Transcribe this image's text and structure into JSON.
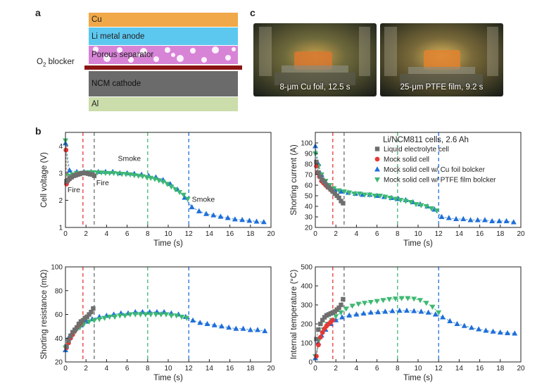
{
  "panel_a": {
    "letter": "a",
    "layers": [
      {
        "label": "Cu",
        "color": "#F0A848"
      },
      {
        "label": "Li metal anode",
        "color": "#5CC8F0"
      },
      {
        "label": "Porous separator",
        "color": "#D784D7"
      },
      {
        "label": "NCM cathode",
        "color": "#6B6B6B"
      },
      {
        "label": "Al",
        "color": "#CBDDAA"
      }
    ],
    "blocker_label": "O",
    "blocker_sub": "2",
    "blocker_rest": " blocker",
    "blocker_color": "#8B1414"
  },
  "panel_c": {
    "letter": "c",
    "photos": [
      {
        "caption": "8-μm Cu foil, 12.5 s"
      },
      {
        "caption": "25-μm PTFE film, 9.2 s"
      }
    ]
  },
  "panel_b": {
    "letter": "b"
  },
  "series_styles": [
    {
      "name": "Liquid electrolyte cell",
      "color": "#6E6E6E",
      "marker": "square",
      "vline": 2.8
    },
    {
      "name": "Mock solid cell",
      "color": "#E53935",
      "marker": "circle",
      "vline": 1.7
    },
    {
      "name": "Mock solid cell w/ Cu foil bolcker",
      "color": "#1E6FD9",
      "marker": "triangle-up",
      "vline": 12.0
    },
    {
      "name": "Mock solid cell w/ PTFE film bolcker",
      "color": "#3DB872",
      "marker": "triangle-down",
      "vline": 8.0
    }
  ],
  "chart_data": [
    {
      "type": "scatter",
      "xlabel": "Time (s)",
      "ylabel": "Cell voltage (V)",
      "xlim": [
        0,
        20
      ],
      "ylim": [
        1,
        4.5
      ],
      "xticks": [
        0,
        2,
        4,
        6,
        8,
        10,
        12,
        14,
        16,
        18,
        20
      ],
      "yticks": [
        1,
        2,
        3,
        4
      ],
      "annotations": [
        {
          "text": "Fire",
          "x": 0.2,
          "y": 2.3
        },
        {
          "text": "Fire",
          "x": 3.0,
          "y": 2.55
        },
        {
          "text": "Smoke",
          "x": 5.1,
          "y": 3.45
        },
        {
          "text": "Smoke",
          "x": 12.3,
          "y": 1.95
        }
      ],
      "series": [
        {
          "x": [
            0.1,
            0.2,
            0.4,
            0.6,
            0.8,
            1.0,
            1.2,
            1.4,
            1.6,
            1.8,
            2.0,
            2.2,
            2.4,
            2.6,
            2.8
          ],
          "values": [
            2.7,
            2.75,
            2.8,
            2.85,
            2.9,
            2.92,
            2.95,
            2.97,
            3.0,
            3.0,
            3.0,
            2.98,
            2.96,
            2.95,
            2.9
          ]
        },
        {
          "x": [
            0.05,
            0.1,
            0.2,
            0.3,
            0.4,
            0.6,
            0.8,
            1.0,
            1.2,
            1.4,
            1.6
          ],
          "values": [
            3.85,
            2.6,
            2.7,
            2.75,
            2.8,
            2.85,
            2.9,
            2.93,
            2.95,
            2.98,
            3.0
          ]
        },
        {
          "x": [
            0.0,
            0.4,
            1.1,
            1.8,
            2.5,
            3.2,
            3.9,
            4.6,
            5.3,
            6.0,
            6.7,
            7.4,
            8.1,
            8.8,
            9.5,
            10.2,
            10.9,
            11.6,
            12.3,
            13.0,
            13.7,
            14.4,
            15.1,
            15.8,
            16.5,
            17.2,
            17.9,
            18.6,
            19.3
          ],
          "values": [
            4.1,
            3.1,
            3.05,
            3.05,
            3.05,
            3.05,
            3.05,
            3.05,
            3.0,
            3.0,
            2.98,
            2.95,
            2.9,
            2.85,
            2.75,
            2.6,
            2.4,
            2.1,
            1.75,
            1.6,
            1.5,
            1.45,
            1.4,
            1.35,
            1.3,
            1.28,
            1.25,
            1.22,
            1.2
          ]
        },
        {
          "x": [
            0.0,
            0.3,
            0.7,
            1.1,
            1.5,
            1.9,
            2.3,
            2.7,
            3.1,
            3.5,
            3.9,
            4.3,
            4.7,
            5.1,
            5.5,
            5.9,
            6.3,
            6.7,
            7.1,
            7.5,
            7.9,
            8.3,
            8.7,
            9.1,
            9.5,
            9.9,
            10.3,
            10.7,
            11.1,
            11.5,
            11.9
          ],
          "values": [
            4.2,
            2.9,
            2.95,
            3.0,
            3.0,
            3.02,
            3.03,
            3.03,
            3.02,
            3.02,
            3.0,
            3.0,
            3.0,
            2.98,
            2.97,
            2.96,
            2.95,
            2.92,
            2.9,
            2.88,
            2.85,
            2.82,
            2.78,
            2.73,
            2.68,
            2.6,
            2.5,
            2.4,
            2.3,
            2.2,
            2.05
          ]
        }
      ]
    },
    {
      "type": "scatter",
      "xlabel": "Time (s)",
      "ylabel": "Shorting current (A)",
      "xlim": [
        0,
        20
      ],
      "ylim": [
        20,
        110
      ],
      "xticks": [
        0,
        2,
        4,
        6,
        8,
        10,
        12,
        14,
        16,
        18,
        20
      ],
      "yticks": [
        20,
        30,
        40,
        50,
        60,
        70,
        80,
        90,
        100
      ],
      "title": "Li/NCM811 cells, 2.6 Ah",
      "legend": "top-right",
      "series": [
        {
          "x": [
            0.1,
            0.3,
            0.5,
            0.7,
            0.9,
            1.1,
            1.3,
            1.5,
            1.7,
            1.9,
            2.1,
            2.3,
            2.5,
            2.7
          ],
          "values": [
            82,
            72,
            68,
            65,
            63,
            60,
            58,
            56,
            54,
            52,
            50,
            48,
            45,
            43
          ]
        },
        {
          "x": [
            0.1,
            0.2,
            0.4,
            0.6,
            0.8,
            1.0,
            1.2,
            1.4,
            1.6
          ],
          "values": [
            78,
            72,
            68,
            64,
            62,
            60,
            58,
            57,
            55
          ]
        },
        {
          "x": [
            0.0,
            0.3,
            0.6,
            1.0,
            1.4,
            1.9,
            2.5,
            3.2,
            3.9,
            4.6,
            5.3,
            6.0,
            6.7,
            7.4,
            8.1,
            8.8,
            9.5,
            10.2,
            10.9,
            11.6,
            12.3,
            13.0,
            13.7,
            14.4,
            15.1,
            15.8,
            16.5,
            17.2,
            17.9,
            18.6,
            19.3
          ],
          "values": [
            97,
            80,
            70,
            63,
            58,
            56,
            54,
            53,
            52,
            51,
            51,
            50,
            49,
            48,
            47,
            46,
            44,
            42,
            40,
            37,
            30,
            29,
            28,
            28,
            27,
            27,
            27,
            26,
            26,
            26,
            25
          ]
        },
        {
          "x": [
            0.0,
            0.3,
            0.6,
            1.0,
            1.4,
            1.8,
            2.3,
            2.8,
            3.3,
            3.8,
            4.3,
            4.8,
            5.3,
            5.8,
            6.3,
            6.8,
            7.3,
            7.8,
            8.3,
            8.8,
            9.3,
            9.8,
            10.3,
            10.8,
            11.3,
            11.8
          ],
          "values": [
            90,
            78,
            70,
            64,
            60,
            57,
            55,
            54,
            53,
            52,
            52,
            51,
            51,
            50,
            50,
            49,
            48,
            47,
            46,
            45,
            44,
            42,
            41,
            40,
            38,
            36
          ]
        }
      ]
    },
    {
      "type": "scatter",
      "xlabel": "Time (s)",
      "ylabel": "Shorting resistance (mΩ)",
      "xlim": [
        0,
        20
      ],
      "ylim": [
        20,
        100
      ],
      "xticks": [
        0,
        2,
        4,
        6,
        8,
        10,
        12,
        14,
        16,
        18,
        20
      ],
      "yticks": [
        20,
        40,
        60,
        80,
        100
      ],
      "series": [
        {
          "x": [
            0.1,
            0.3,
            0.5,
            0.7,
            0.9,
            1.1,
            1.3,
            1.5,
            1.7,
            1.9,
            2.1,
            2.3,
            2.5,
            2.7
          ],
          "values": [
            33,
            38,
            42,
            45,
            47,
            49,
            52,
            54,
            55,
            57,
            58,
            60,
            62,
            65
          ]
        },
        {
          "x": [
            0.1,
            0.3,
            0.5,
            0.7,
            0.9,
            1.1,
            1.3,
            1.5,
            1.7
          ],
          "values": [
            32,
            36,
            40,
            43,
            46,
            49,
            51,
            53,
            55
          ]
        },
        {
          "x": [
            0.0,
            0.3,
            0.6,
            1.0,
            1.5,
            2.0,
            2.6,
            3.3,
            4.0,
            4.7,
            5.4,
            6.1,
            6.8,
            7.5,
            8.2,
            8.9,
            9.6,
            10.3,
            11.0,
            11.7,
            12.4,
            13.1,
            13.8,
            14.5,
            15.2,
            15.9,
            16.6,
            17.3,
            18.0,
            18.7,
            19.4
          ],
          "values": [
            30,
            40,
            44,
            48,
            51,
            54,
            56,
            58,
            59,
            60,
            61,
            61,
            62,
            62,
            62,
            62,
            62,
            61,
            60,
            58,
            55,
            53,
            52,
            51,
            50,
            49,
            48,
            48,
            47,
            47,
            46
          ]
        },
        {
          "x": [
            0.0,
            0.3,
            0.6,
            1.0,
            1.4,
            1.8,
            2.3,
            2.8,
            3.3,
            3.8,
            4.3,
            4.8,
            5.3,
            5.8,
            6.3,
            6.8,
            7.3,
            7.8,
            8.3,
            8.8,
            9.3,
            9.8,
            10.3,
            10.8,
            11.3,
            11.8
          ],
          "values": [
            32,
            38,
            42,
            46,
            49,
            52,
            54,
            55,
            56,
            57,
            58,
            58,
            59,
            59,
            60,
            60,
            60,
            60,
            60,
            60,
            60,
            60,
            59,
            59,
            58,
            57
          ]
        }
      ]
    },
    {
      "type": "scatter",
      "xlabel": "Time (s)",
      "ylabel": "Internal temperature (°C)",
      "xlim": [
        0,
        20
      ],
      "ylim": [
        0,
        500
      ],
      "xticks": [
        0,
        2,
        4,
        6,
        8,
        10,
        12,
        14,
        16,
        18,
        20
      ],
      "yticks": [
        0,
        100,
        200,
        300,
        400,
        500
      ],
      "series": [
        {
          "x": [
            0.1,
            0.3,
            0.5,
            0.7,
            0.9,
            1.1,
            1.3,
            1.5,
            1.7,
            1.9,
            2.1,
            2.3,
            2.5,
            2.7
          ],
          "values": [
            120,
            170,
            200,
            220,
            235,
            245,
            250,
            255,
            260,
            265,
            275,
            285,
            300,
            330
          ]
        },
        {
          "x": [
            0.1,
            0.3,
            0.5,
            0.7,
            0.9,
            1.1,
            1.3,
            1.5,
            1.7
          ],
          "values": [
            30,
            90,
            130,
            155,
            175,
            190,
            200,
            210,
            220
          ]
        },
        {
          "x": [
            0.0,
            0.3,
            0.6,
            1.0,
            1.5,
            2.0,
            2.6,
            3.3,
            4.0,
            4.7,
            5.4,
            6.1,
            6.8,
            7.5,
            8.2,
            8.9,
            9.6,
            10.3,
            11.0,
            11.7,
            12.4,
            13.1,
            13.8,
            14.5,
            15.2,
            15.9,
            16.6,
            17.3,
            18.0,
            18.7,
            19.4
          ],
          "values": [
            20,
            100,
            140,
            170,
            200,
            220,
            235,
            245,
            250,
            255,
            260,
            262,
            265,
            268,
            270,
            270,
            268,
            265,
            260,
            250,
            235,
            215,
            200,
            190,
            180,
            172,
            165,
            160,
            155,
            152,
            150
          ]
        },
        {
          "x": [
            0.0,
            0.4,
            0.8,
            1.2,
            1.6,
            2.0,
            2.5,
            3.0,
            3.6,
            4.2,
            4.8,
            5.4,
            6.0,
            6.6,
            7.2,
            7.8,
            8.4,
            9.0,
            9.6,
            10.2,
            10.8,
            11.4,
            12.0
          ],
          "values": [
            30,
            120,
            170,
            200,
            220,
            240,
            260,
            280,
            295,
            305,
            310,
            315,
            320,
            325,
            330,
            333,
            335,
            335,
            332,
            325,
            310,
            290,
            260
          ]
        }
      ]
    }
  ]
}
